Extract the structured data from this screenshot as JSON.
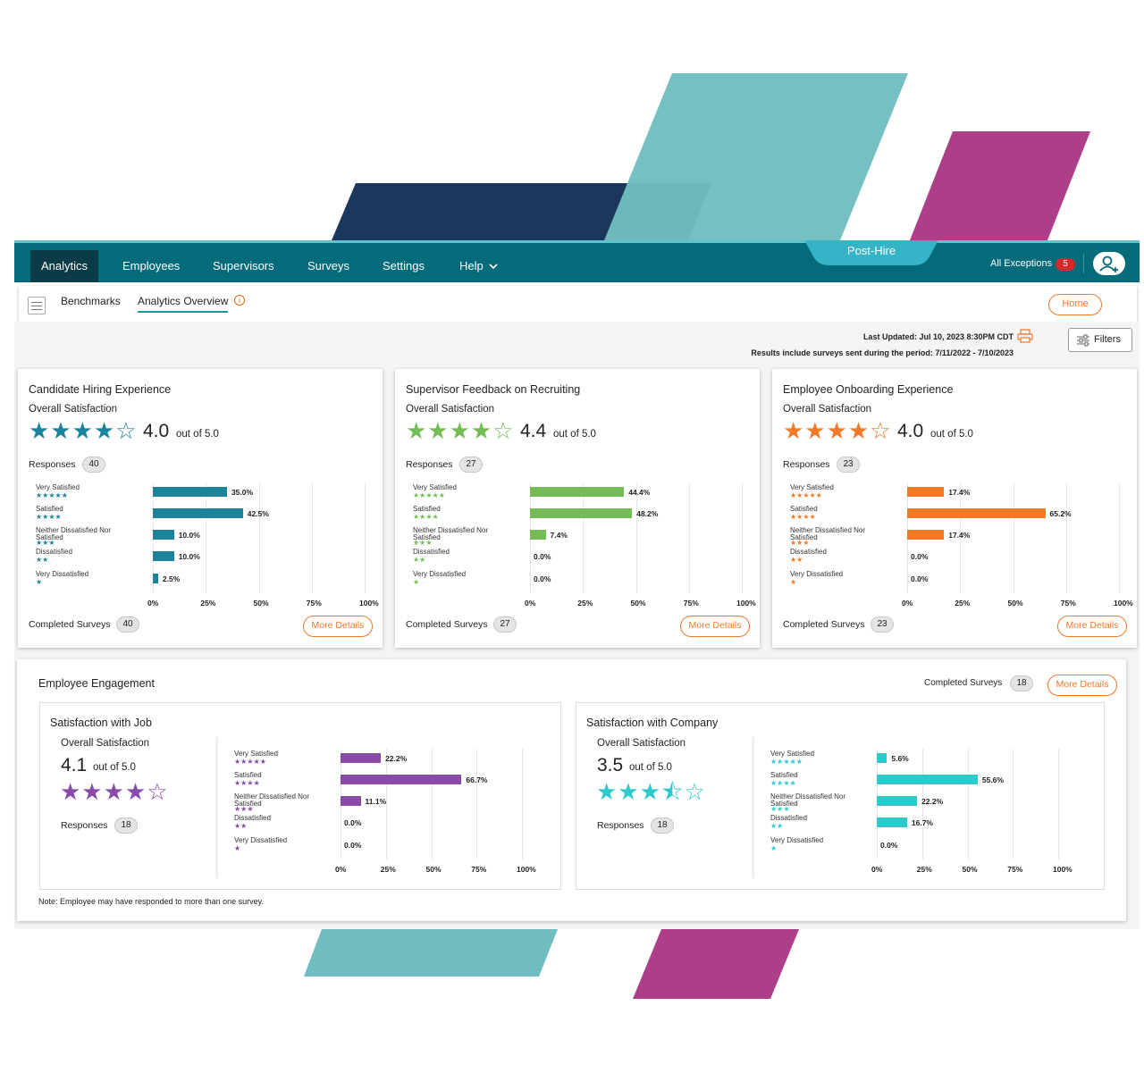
{
  "colors": {
    "nav_bg": "#046b7a",
    "teal_bar": "#1b849b",
    "green_bar": "#74bd56",
    "orange_bar": "#f07a26",
    "purple_bar": "#8a4aa8",
    "cyan_bar": "#2cc9cd",
    "accent_orange": "#ef7a2a",
    "badge_red": "#d8262c"
  },
  "nav": {
    "items": [
      "Analytics",
      "Employees",
      "Supervisors",
      "Surveys",
      "Settings",
      "Help"
    ],
    "active": "Analytics",
    "help_icon": "chevron-down-icon",
    "context": "Post-Hire",
    "exceptions_label": "All Exceptions",
    "exceptions_count": "5",
    "user_icon": "add-user-icon"
  },
  "subnav": {
    "tabs": [
      "Benchmarks",
      "Analytics Overview"
    ],
    "active": "Analytics Overview",
    "home_label": "Home"
  },
  "status": {
    "last_updated": "Last Updated: Jul 10, 2023 8:30PM CDT",
    "period": "Results include surveys sent during the period: 7/11/2022 - 7/10/2023",
    "filters_label": "Filters"
  },
  "common": {
    "overall_label": "Overall Satisfaction",
    "out_of": "out of 5.0",
    "responses_label": "Responses",
    "completed_label": "Completed Surveys",
    "more_details": "More Details",
    "categories": [
      "Very Satisfied",
      "Satisfied",
      "Neither Dissatisfied Nor Satisfied",
      "Dissatisfied",
      "Very Dissatisfied"
    ],
    "category_stars": [
      "★★★★★",
      "★★★★",
      "★★★",
      "★★",
      "★"
    ],
    "ticks": [
      "0%",
      "25%",
      "50%",
      "75%",
      "100%"
    ]
  },
  "cards": [
    {
      "title": "Candidate Hiring Experience",
      "score": "4.0",
      "stars": "★★★★☆",
      "responses": "40",
      "completed": "40",
      "color": "#1b849b",
      "chart_data": {
        "type": "bar",
        "orientation": "horizontal",
        "categories": [
          "Very Satisfied",
          "Satisfied",
          "Neither Dissatisfied Nor Satisfied",
          "Dissatisfied",
          "Very Dissatisfied"
        ],
        "values": [
          35.0,
          42.5,
          10.0,
          10.0,
          2.5
        ],
        "labels": [
          "35.0%",
          "42.5%",
          "10.0%",
          "10.0%",
          "2.5%"
        ],
        "xlim": [
          0,
          100
        ]
      }
    },
    {
      "title": "Supervisor Feedback on Recruiting",
      "score": "4.4",
      "stars": "★★★★☆",
      "responses": "27",
      "completed": "27",
      "color": "#74bd56",
      "chart_data": {
        "type": "bar",
        "orientation": "horizontal",
        "categories": [
          "Very Satisfied",
          "Satisfied",
          "Neither Dissatisfied Nor Satisfied",
          "Dissatisfied",
          "Very Dissatisfied"
        ],
        "values": [
          44.4,
          48.2,
          7.4,
          0.0,
          0.0
        ],
        "labels": [
          "44.4%",
          "48.2%",
          "7.4%",
          "0.0%",
          "0.0%"
        ],
        "xlim": [
          0,
          100
        ]
      }
    },
    {
      "title": "Employee Onboarding Experience",
      "score": "4.0",
      "stars": "★★★★☆",
      "responses": "23",
      "completed": "23",
      "color": "#f07a26",
      "chart_data": {
        "type": "bar",
        "orientation": "horizontal",
        "categories": [
          "Very Satisfied",
          "Satisfied",
          "Neither Dissatisfied Nor Satisfied",
          "Dissatisfied",
          "Very Dissatisfied"
        ],
        "values": [
          17.4,
          65.2,
          17.4,
          0.0,
          0.0
        ],
        "labels": [
          "17.4%",
          "65.2%",
          "17.4%",
          "0.0%",
          "0.0%"
        ],
        "xlim": [
          0,
          100
        ]
      }
    }
  ],
  "engagement": {
    "title": "Employee Engagement",
    "completed": "18",
    "note": "Note: Employee may have responded to more than one survey.",
    "sections": [
      {
        "title": "Satisfaction with Job",
        "score": "4.1",
        "stars": "★★★★☆",
        "responses": "18",
        "color": "#8a4aa8",
        "chart_data": {
          "type": "bar",
          "orientation": "horizontal",
          "categories": [
            "Very Satisfied",
            "Satisfied",
            "Neither Dissatisfied Nor Satisfied",
            "Dissatisfied",
            "Very Dissatisfied"
          ],
          "values": [
            22.2,
            66.7,
            11.1,
            0.0,
            0.0
          ],
          "labels": [
            "22.2%",
            "66.7%",
            "11.1%",
            "0.0%",
            "0.0%"
          ],
          "xlim": [
            0,
            100
          ]
        }
      },
      {
        "title": "Satisfaction with Company",
        "score": "3.5",
        "stars": "★★★⯪☆",
        "responses": "18",
        "color": "#2cc9cd",
        "chart_data": {
          "type": "bar",
          "orientation": "horizontal",
          "categories": [
            "Very Satisfied",
            "Satisfied",
            "Neither Dissatisfied Nor Satisfied",
            "Dissatisfied",
            "Very Dissatisfied"
          ],
          "values": [
            5.6,
            55.6,
            22.2,
            16.7,
            0.0
          ],
          "labels": [
            "5.6%",
            "55.6%",
            "22.2%",
            "16.7%",
            "0.0%"
          ],
          "xlim": [
            0,
            100
          ]
        }
      }
    ]
  }
}
